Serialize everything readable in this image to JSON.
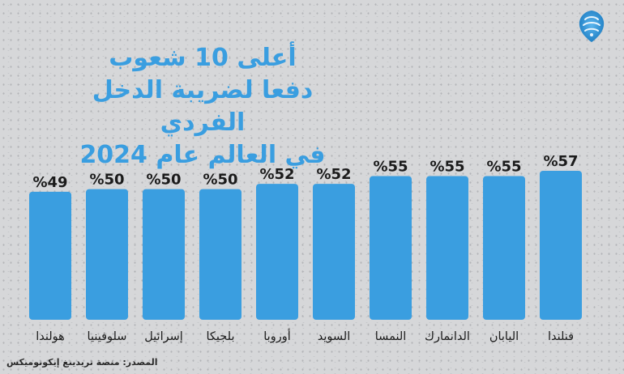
{
  "title": "أعلى 10 شعوب\nدفعا لضريبة الدخل الفردي\nفي العالم عام 2024",
  "source": "المصدر: منصة تريدينغ إيكونوميكس",
  "colors": {
    "bar": "#3a9ee0",
    "title": "#3a9ee0",
    "logo": "#2f8fd0"
  },
  "logo": {
    "icon": "al-jazeera-logo-icon"
  },
  "chart_data": {
    "type": "bar",
    "title": "أعلى 10 شعوب دفعا لضريبة الدخل الفردي في العالم عام 2024",
    "categories": [
      "فنلندا",
      "اليابان",
      "الدانمارك",
      "النمسا",
      "السويد",
      "أوروبا",
      "بلجيكا",
      "إسرائيل",
      "سلوفينيا",
      "هولندا"
    ],
    "values": [
      57,
      55,
      55,
      55,
      52,
      52,
      50,
      50,
      50,
      49
    ],
    "value_labels": [
      "%57",
      "%55",
      "%55",
      "%55",
      "%52",
      "%52",
      "%50",
      "%50",
      "%50",
      "%49"
    ],
    "order": "right-to-left",
    "unit": "%",
    "ylim": [
      0,
      57
    ],
    "grid": false,
    "legend": "none"
  }
}
